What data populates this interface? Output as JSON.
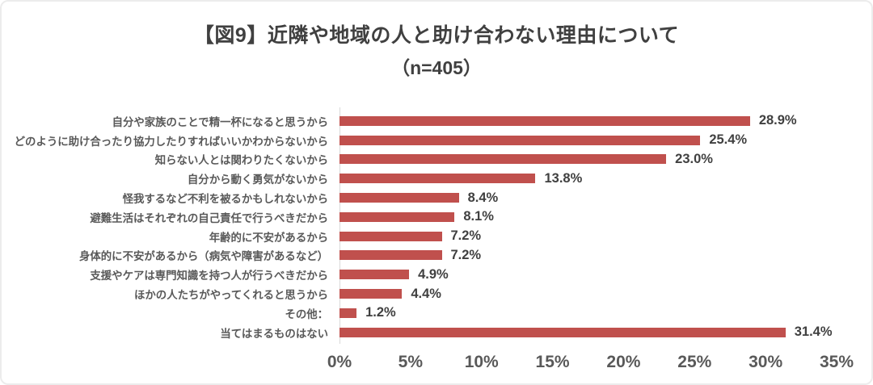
{
  "chart_data": {
    "type": "bar",
    "orientation": "horizontal",
    "title": "【図9】近隣や地域の人と助け合わない理由について",
    "subtitle": "（n=405）",
    "categories": [
      "自分や家族のことで精一杯になると思うから",
      "どのように助け合ったり協力したりすればいいかわからないから",
      "知らない人とは関わりたくないから",
      "自分から動く勇気がないから",
      "怪我するなど不利を被るかもしれないから",
      "避難生活はそれぞれの自己責任で行うべきだから",
      "年齢的に不安があるから",
      "身体的に不安があるから（病気や障害があるなど）",
      "支援やケアは専門知識を持つ人が行うべきだから",
      "ほかの人たちがやってくれると思うから",
      "その他：",
      "当てはまるものはない"
    ],
    "values": [
      28.9,
      25.4,
      23.0,
      13.8,
      8.4,
      8.1,
      7.2,
      7.2,
      4.9,
      4.4,
      1.2,
      31.4
    ],
    "value_labels": [
      "28.9%",
      "25.4%",
      "23.0%",
      "13.8%",
      "8.4%",
      "8.1%",
      "7.2%",
      "7.2%",
      "4.9%",
      "4.4%",
      "1.2%",
      "31.4%"
    ],
    "xlim": [
      0,
      35
    ],
    "x_ticks": [
      "0%",
      "5%",
      "10%",
      "15%",
      "20%",
      "25%",
      "30%",
      "35%"
    ],
    "grid": false,
    "legend": false,
    "bar_color": "#c0504d",
    "axis_line_color": "#d9d9d9"
  }
}
